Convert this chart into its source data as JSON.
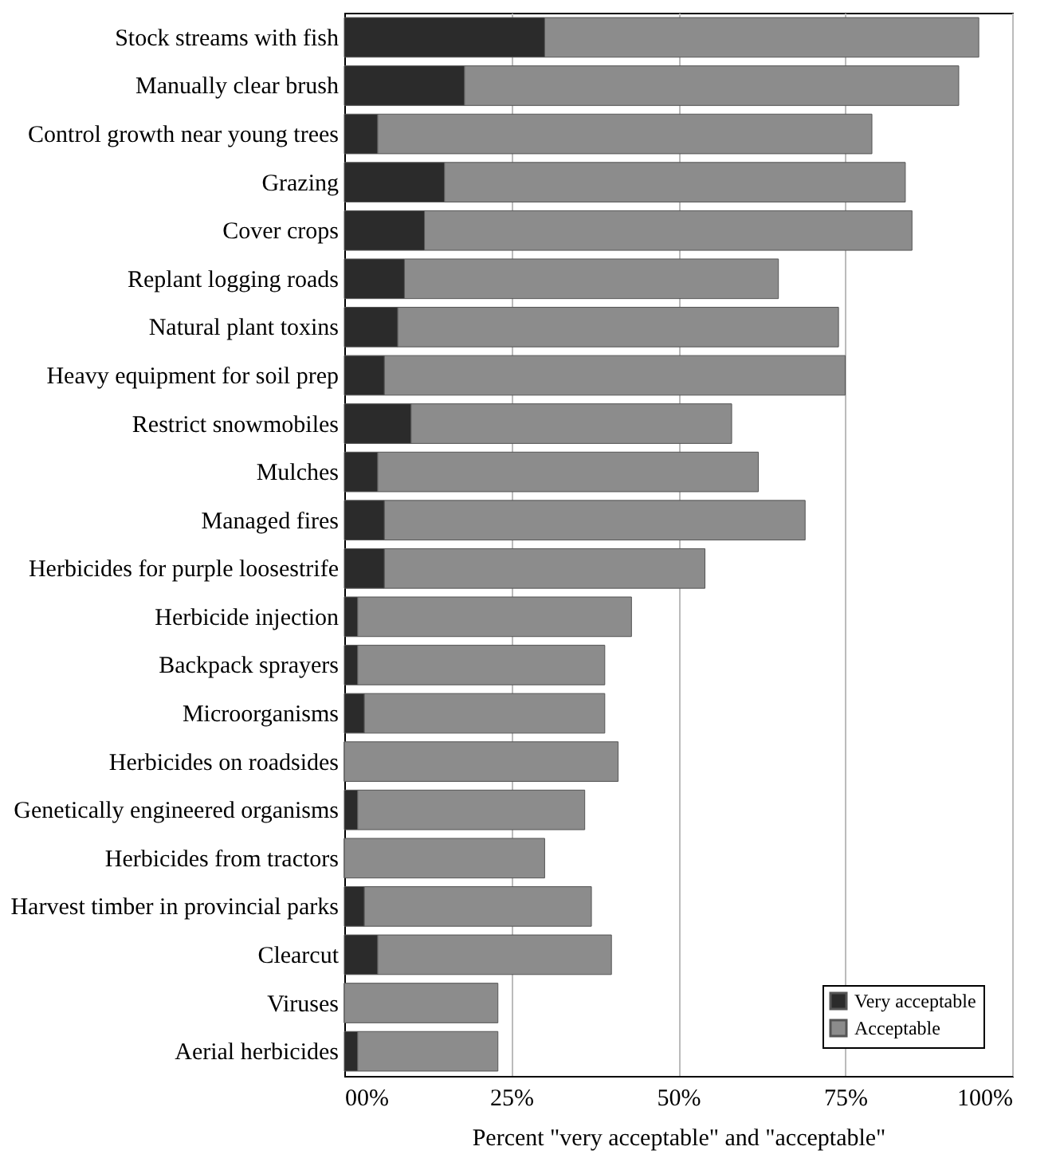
{
  "chart_data": {
    "type": "bar",
    "orientation": "horizontal",
    "stacked": true,
    "xlabel": "Percent \"very acceptable\" and \"acceptable\"",
    "categories": [
      "Stock streams with fish",
      "Manually clear brush",
      "Control growth near young trees",
      "Grazing",
      "Cover crops",
      "Replant logging roads",
      "Natural plant toxins",
      "Heavy equipment for soil prep",
      "Restrict snowmobiles",
      "Mulches",
      "Managed fires",
      "Herbicides for purple loosestrife",
      "Herbicide injection",
      "Backpack sprayers",
      "Microorganisms",
      "Herbicides on roadsides",
      "Genetically engineered organisms",
      "Herbicides from tractors",
      "Harvest timber in provincial parks",
      "Clearcut",
      "Viruses",
      "Aerial herbicides"
    ],
    "series": [
      {
        "name": "Very acceptable",
        "color": "#2b2b2b",
        "values": [
          30,
          18,
          5,
          15,
          12,
          9,
          8,
          6,
          10,
          5,
          6,
          6,
          2,
          2,
          3,
          0,
          2,
          0,
          3,
          5,
          0,
          2
        ]
      },
      {
        "name": "Acceptable",
        "color": "#8c8c8c",
        "values": [
          65,
          74,
          74,
          69,
          73,
          56,
          66,
          69,
          48,
          57,
          63,
          48,
          41,
          37,
          36,
          41,
          34,
          30,
          34,
          35,
          23,
          21
        ]
      }
    ],
    "xlim": [
      0,
      100
    ],
    "xticks": [
      {
        "value": 0,
        "label": "00%"
      },
      {
        "value": 25,
        "label": "25%"
      },
      {
        "value": 50,
        "label": "50%"
      },
      {
        "value": 75,
        "label": "75%"
      },
      {
        "value": 100,
        "label": "100%"
      }
    ],
    "grid": "x",
    "legend": "bottom right"
  }
}
